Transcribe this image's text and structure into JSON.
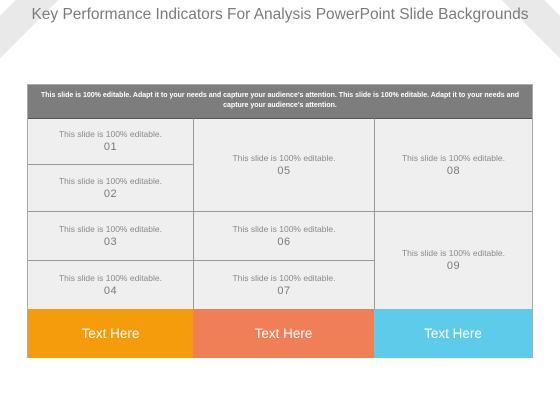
{
  "slide": {
    "title": "Key Performance Indicators For Analysis PowerPoint Slide Backgrounds",
    "header_text": "This slide is 100%  editable. Adapt it to your  needs and capture your audience's attention. This slide is 100%  editable. Adapt it to your needs and capture your audience's attention."
  },
  "cells": [
    {
      "text": "This slide is 100% editable.",
      "number": "01"
    },
    {
      "text": "This slide is 100% editable.",
      "number": "02"
    },
    {
      "text": "This slide is 100% editable.",
      "number": "03"
    },
    {
      "text": "This slide is 100% editable.",
      "number": "04"
    },
    {
      "text": "This slide is 100% editable.",
      "number": "05"
    },
    {
      "text": "This slide is 100% editable.",
      "number": "06"
    },
    {
      "text": "This slide is 100% editable.",
      "number": "07"
    },
    {
      "text": "This slide is 100% editable.",
      "number": "08"
    },
    {
      "text": "This slide is 100% editable.",
      "number": "09"
    }
  ],
  "footer": [
    {
      "label": "Text Here",
      "color": "#f59c0d"
    },
    {
      "label": "Text Here",
      "color": "#f07f58"
    },
    {
      "label": "Text Here",
      "color": "#5ecbeb"
    }
  ]
}
